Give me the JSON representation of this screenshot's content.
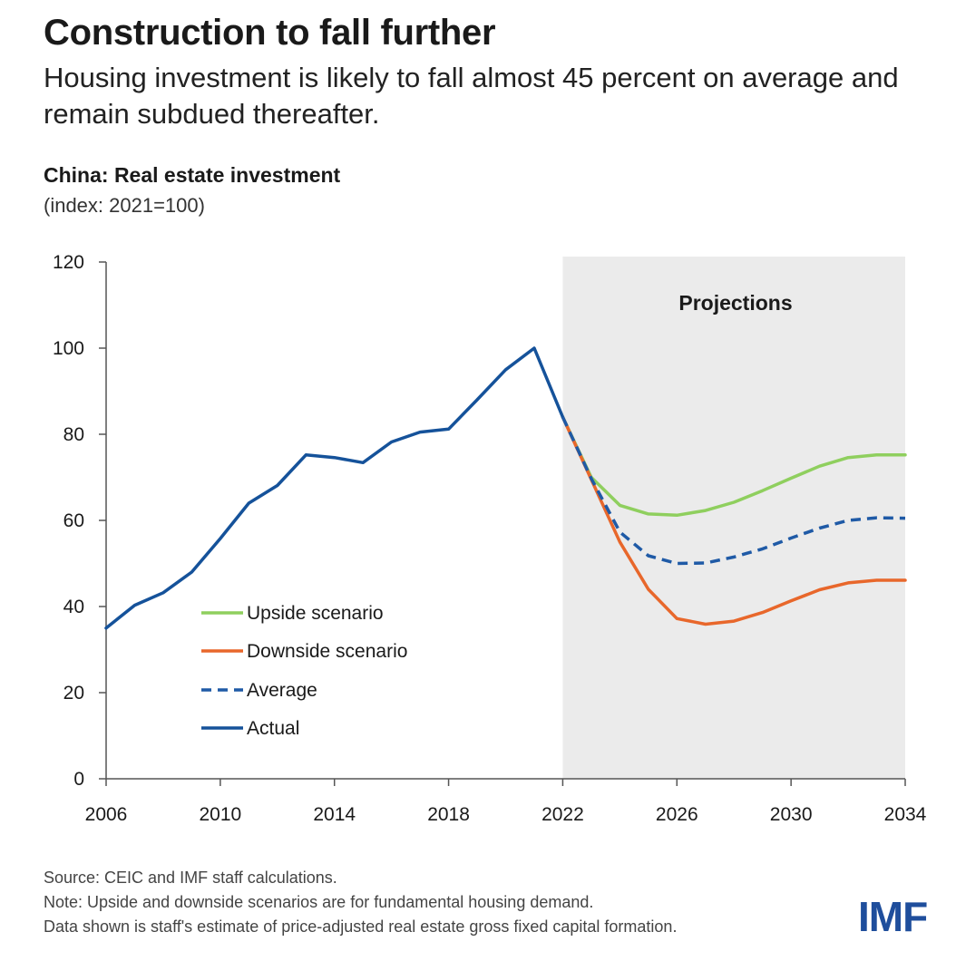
{
  "header": {
    "headline": "Construction to fall further",
    "subhead": "Housing investment is likely to fall almost 45 percent on average and remain subdued thereafter."
  },
  "chart_data": {
    "type": "line",
    "title": "China: Real estate investment",
    "subtitle": "(index: 2021=100)",
    "xlabel": "",
    "ylabel": "",
    "xlim": [
      2006,
      2034
    ],
    "ylim": [
      0,
      120
    ],
    "x_ticks": [
      "2006",
      "2010",
      "2014",
      "2018",
      "2022",
      "2026",
      "2030",
      "2034"
    ],
    "y_ticks": [
      "0",
      "20",
      "40",
      "60",
      "80",
      "100",
      "120"
    ],
    "grid": false,
    "shaded_region": {
      "x_range": [
        2022,
        2034
      ],
      "label": "Projections",
      "color": "#ebebeb"
    },
    "legend_position": "lower-left",
    "series": [
      {
        "name": "Upside scenario",
        "color": "#8fcf5e",
        "style": "solid",
        "x": [
          2022,
          2023,
          2024,
          2025,
          2026,
          2027,
          2028,
          2029,
          2030,
          2031,
          2032,
          2033,
          2034
        ],
        "values": [
          84,
          70,
          63.5,
          61.5,
          61.2,
          62.3,
          64.2,
          66.9,
          69.8,
          72.6,
          74.6,
          75.2,
          75.2
        ]
      },
      {
        "name": "Downside scenario",
        "color": "#e8672b",
        "style": "solid",
        "x": [
          2022,
          2023,
          2024,
          2025,
          2026,
          2027,
          2028,
          2029,
          2030,
          2031,
          2032,
          2033,
          2034
        ],
        "values": [
          84,
          69.5,
          55,
          44,
          37.2,
          35.9,
          36.6,
          38.6,
          41.3,
          43.9,
          45.5,
          46.1,
          46.1
        ]
      },
      {
        "name": "Average",
        "color": "#1f5aa6",
        "style": "dashed",
        "x": [
          2022,
          2023,
          2024,
          2025,
          2026,
          2027,
          2028,
          2029,
          2030,
          2031,
          2032,
          2033,
          2034
        ],
        "values": [
          84,
          69.7,
          57.3,
          51.8,
          50,
          50.1,
          51.5,
          53.4,
          55.9,
          58.2,
          60,
          60.6,
          60.5
        ]
      },
      {
        "name": "Actual",
        "color": "#15529a",
        "style": "solid",
        "x": [
          2006,
          2007,
          2008,
          2009,
          2010,
          2011,
          2012,
          2013,
          2014,
          2015,
          2016,
          2017,
          2018,
          2019,
          2020,
          2021,
          2022
        ],
        "values": [
          35,
          40.3,
          43.2,
          48,
          55.8,
          64,
          68.1,
          75.2,
          74.6,
          73.4,
          78.2,
          80.5,
          81.2,
          88,
          95,
          100,
          84
        ]
      }
    ]
  },
  "footnotes": {
    "source": "Source: CEIC and IMF staff calculations.",
    "note1": "Note: Upside and downside scenarios are for fundamental housing demand.",
    "note2": "Data shown is staff's estimate of price-adjusted real estate gross fixed capital formation."
  },
  "branding": {
    "logo_text": "IMF",
    "logo_color": "#1f4e9c"
  }
}
